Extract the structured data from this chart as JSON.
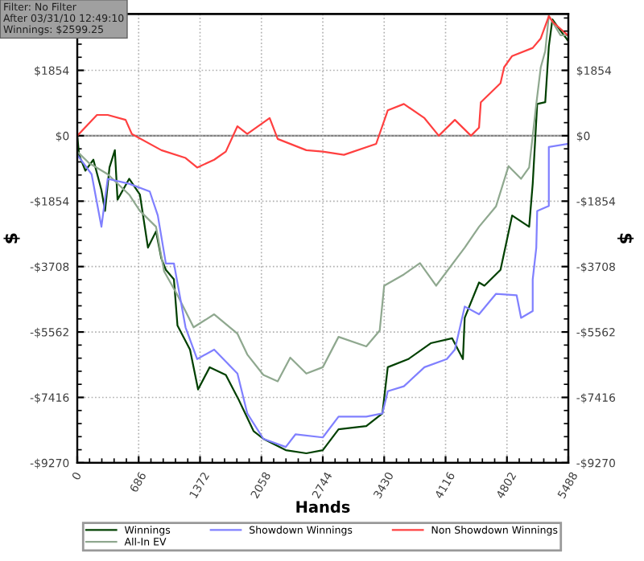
{
  "chart_data": {
    "type": "line",
    "xlabel": "Hands",
    "ylabel": "$",
    "y2label": "$",
    "annotations": [
      "Filter: No Filter",
      "After 03/31/10 12:49:10",
      "Winnings: $2599.25"
    ],
    "xlim": [
      0,
      5488
    ],
    "xticks": [
      0,
      686,
      1372,
      2058,
      2744,
      3430,
      4116,
      4802,
      5488
    ],
    "ylim": [
      -9270,
      3450
    ],
    "yticks": [
      {
        "value": 1854,
        "label": "$1854"
      },
      {
        "value": 0,
        "label": "$0"
      },
      {
        "value": -1854,
        "label": "-$1854"
      },
      {
        "value": -3708,
        "label": "-$3708"
      },
      {
        "value": -5562,
        "label": "-$5562"
      },
      {
        "value": -7416,
        "label": "-$7416"
      },
      {
        "value": -9270,
        "label": "-$9270"
      }
    ],
    "y2lim": [
      -9270,
      3450
    ],
    "y2ticks": [
      {
        "value": 1854,
        "label": "$1854"
      },
      {
        "value": 0,
        "label": "$0"
      },
      {
        "value": -1854,
        "label": "-$1854"
      },
      {
        "value": -3708,
        "label": "-$3708"
      },
      {
        "value": -5562,
        "label": "-$5562"
      },
      {
        "value": -7416,
        "label": "-$7416"
      },
      {
        "value": -9270,
        "label": "-$9270"
      }
    ],
    "grid": true,
    "legend": "bottom",
    "marker": "none",
    "line_style": "solid",
    "ref_lines": [
      {
        "axis": "y",
        "value": 0,
        "label": null,
        "color": "#808080"
      }
    ],
    "series": [
      {
        "name": "Winnings",
        "color": "#004000",
        "x": [
          0,
          20,
          90,
          180,
          270,
          310,
          360,
          420,
          450,
          580,
          700,
          790,
          880,
          940,
          990,
          1080,
          1120,
          1260,
          1350,
          1480,
          1660,
          1800,
          1970,
          2080,
          2330,
          2560,
          2744,
          2920,
          3230,
          3410,
          3470,
          3700,
          3950,
          4190,
          4310,
          4330,
          4490,
          4550,
          4730,
          4860,
          5050,
          5090,
          5140,
          5230,
          5270,
          5310,
          5400,
          5480
        ],
        "values": [
          0,
          -540,
          -990,
          -680,
          -1540,
          -2130,
          -900,
          -410,
          -1810,
          -1220,
          -1670,
          -3170,
          -2710,
          -3480,
          -3800,
          -4070,
          -5380,
          -6060,
          -7190,
          -6560,
          -6780,
          -7460,
          -8370,
          -8590,
          -8910,
          -9000,
          -8910,
          -8320,
          -8230,
          -7870,
          -6560,
          -6330,
          -5880,
          -5740,
          -6330,
          -5160,
          -4160,
          -4250,
          -3800,
          -2260,
          -2580,
          -1360,
          900,
          950,
          2530,
          3300,
          2980,
          2710
        ]
      },
      {
        "name": "All-In EV",
        "color": "#8fa88f",
        "x": [
          0,
          130,
          340,
          580,
          700,
          880,
          970,
          1120,
          1300,
          1530,
          1790,
          1900,
          2080,
          2240,
          2380,
          2560,
          2744,
          2920,
          3230,
          3380,
          3430,
          3650,
          3830,
          4010,
          4330,
          4490,
          4680,
          4820,
          4960,
          5050,
          5130,
          5180,
          5230,
          5270,
          5400,
          5480
        ],
        "values": [
          -450,
          -770,
          -1090,
          -1670,
          -2130,
          -2580,
          -3840,
          -4520,
          -5430,
          -5060,
          -5610,
          -6200,
          -6780,
          -6960,
          -6290,
          -6740,
          -6560,
          -5700,
          -5970,
          -5520,
          -4250,
          -3930,
          -3610,
          -4250,
          -3170,
          -2580,
          -2000,
          -860,
          -1220,
          -900,
          900,
          1940,
          2400,
          3400,
          2850,
          2850
        ]
      },
      {
        "name": "Showdown Winnings",
        "color": "#8080ff",
        "x": [
          0,
          160,
          270,
          340,
          580,
          810,
          900,
          990,
          1080,
          1210,
          1340,
          1530,
          1790,
          1900,
          2080,
          2330,
          2440,
          2744,
          2920,
          3230,
          3410,
          3470,
          3650,
          3880,
          4130,
          4220,
          4330,
          4490,
          4680,
          4910,
          4960,
          5090,
          5090,
          5130,
          5140,
          5270,
          5270,
          5480
        ],
        "values": [
          -540,
          -1090,
          -2580,
          -1220,
          -1360,
          -1580,
          -2260,
          -3620,
          -3620,
          -5430,
          -6330,
          -6060,
          -6740,
          -7870,
          -8590,
          -8820,
          -8460,
          -8550,
          -7960,
          -7960,
          -7870,
          -7240,
          -7100,
          -6560,
          -6330,
          -6060,
          -4840,
          -5060,
          -4480,
          -4520,
          -5160,
          -4970,
          -4070,
          -3170,
          -2130,
          -1990,
          -320,
          -230
        ]
      },
      {
        "name": "Non Showdown Winnings",
        "color": "#ff4040",
        "x": [
          0,
          220,
          340,
          540,
          610,
          940,
          1210,
          1340,
          1530,
          1660,
          1790,
          1900,
          2150,
          2240,
          2560,
          2744,
          2980,
          3340,
          3470,
          3650,
          3880,
          4040,
          4220,
          4400,
          4490,
          4510,
          4730,
          4770,
          4860,
          5090,
          5180,
          5270,
          5320,
          5480
        ],
        "values": [
          0,
          590,
          590,
          450,
          50,
          -410,
          -630,
          -900,
          -680,
          -450,
          270,
          50,
          500,
          -90,
          -410,
          -450,
          -540,
          -230,
          720,
          900,
          500,
          0,
          450,
          0,
          230,
          950,
          1490,
          1940,
          2260,
          2490,
          2760,
          3390,
          3210,
          2850
        ]
      }
    ]
  }
}
